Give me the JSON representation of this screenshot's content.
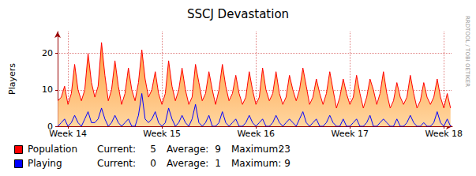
{
  "chart_data": {
    "type": "line",
    "title": "SSCJ Devastation",
    "y_label": "Players",
    "side_text": "RRDTOOL / TOBI OETIKER",
    "legend": "bottom-left",
    "grid": true,
    "legend_labels": [
      "Current:",
      "Average:",
      "Maximum:"
    ],
    "xlim": [
      13.89,
      18.09
    ],
    "xticks": [
      {
        "value": 14,
        "label": "Week 14"
      },
      {
        "value": 15,
        "label": "Week 15"
      },
      {
        "value": 16,
        "label": "Week 16"
      },
      {
        "value": 17,
        "label": "Week 17"
      },
      {
        "value": 18,
        "label": "Week 18"
      }
    ],
    "ylim": [
      0,
      26
    ],
    "yticks": [
      0,
      10,
      20
    ],
    "x": [
      13.893,
      13.929,
      13.964,
      14.0,
      14.036,
      14.071,
      14.107,
      14.143,
      14.179,
      14.214,
      14.25,
      14.286,
      14.321,
      14.357,
      14.393,
      14.429,
      14.464,
      14.5,
      14.536,
      14.571,
      14.607,
      14.643,
      14.679,
      14.714,
      14.75,
      14.786,
      14.821,
      14.857,
      14.893,
      14.929,
      14.964,
      15.0,
      15.036,
      15.071,
      15.107,
      15.143,
      15.179,
      15.214,
      15.25,
      15.286,
      15.321,
      15.357,
      15.393,
      15.429,
      15.464,
      15.5,
      15.536,
      15.571,
      15.607,
      15.643,
      15.679,
      15.714,
      15.75,
      15.786,
      15.821,
      15.857,
      15.893,
      15.929,
      15.964,
      16.0,
      16.036,
      16.071,
      16.107,
      16.143,
      16.179,
      16.214,
      16.25,
      16.286,
      16.321,
      16.357,
      16.393,
      16.429,
      16.464,
      16.5,
      16.536,
      16.571,
      16.607,
      16.643,
      16.679,
      16.714,
      16.75,
      16.786,
      16.821,
      16.857,
      16.893,
      16.929,
      16.964,
      17.0,
      17.036,
      17.071,
      17.107,
      17.143,
      17.179,
      17.214,
      17.25,
      17.286,
      17.321,
      17.357,
      17.393,
      17.429,
      17.464,
      17.5,
      17.536,
      17.571,
      17.607,
      17.643,
      17.679,
      17.714,
      17.75,
      17.786,
      17.821,
      17.857,
      17.893,
      17.929,
      17.964,
      18.0,
      18.036,
      18.071
    ],
    "series": [
      {
        "name": "Population",
        "color": "#ff0000",
        "current": 5,
        "average": 9,
        "maximum": 23,
        "values": [
          7,
          8,
          11,
          6,
          9,
          17,
          10,
          7,
          10,
          20,
          12,
          8,
          11,
          23,
          14,
          7,
          10,
          18,
          11,
          6,
          9,
          16,
          10,
          7,
          12,
          21,
          13,
          8,
          10,
          15,
          9,
          6,
          9,
          18,
          11,
          7,
          10,
          16,
          10,
          6,
          8,
          17,
          12,
          7,
          9,
          15,
          10,
          6,
          10,
          17,
          11,
          7,
          9,
          14,
          9,
          6,
          8,
          15,
          10,
          6,
          8,
          16,
          10,
          7,
          9,
          15,
          9,
          6,
          8,
          14,
          10,
          7,
          10,
          16,
          11,
          6,
          8,
          13,
          9,
          6,
          9,
          15,
          10,
          5,
          8,
          13,
          9,
          6,
          8,
          14,
          9,
          5,
          8,
          13,
          10,
          6,
          9,
          15,
          9,
          5,
          7,
          12,
          8,
          6,
          8,
          14,
          9,
          5,
          7,
          12,
          8,
          6,
          8,
          13,
          8,
          5,
          9,
          5
        ]
      },
      {
        "name": "Playing",
        "color": "#0000ff",
        "current": 0,
        "average": 1,
        "maximum": 9,
        "values": [
          0,
          1,
          2,
          0,
          1,
          3,
          1,
          0,
          2,
          4,
          1,
          1,
          2,
          5,
          2,
          0,
          1,
          3,
          1,
          0,
          1,
          2,
          0,
          0,
          3,
          9,
          2,
          1,
          2,
          4,
          1,
          0,
          1,
          5,
          2,
          0,
          1,
          3,
          1,
          0,
          2,
          6,
          1,
          0,
          1,
          3,
          0,
          0,
          1,
          4,
          1,
          0,
          1,
          2,
          0,
          0,
          1,
          3,
          1,
          0,
          1,
          2,
          0,
          0,
          1,
          3,
          1,
          0,
          1,
          2,
          1,
          0,
          2,
          4,
          1,
          0,
          1,
          2,
          0,
          0,
          1,
          3,
          1,
          0,
          0,
          2,
          0,
          0,
          1,
          2,
          0,
          0,
          1,
          3,
          0,
          0,
          1,
          2,
          1,
          0,
          0,
          2,
          0,
          0,
          1,
          3,
          1,
          0,
          0,
          1,
          0,
          0,
          1,
          4,
          1,
          0,
          2,
          0
        ]
      }
    ]
  }
}
